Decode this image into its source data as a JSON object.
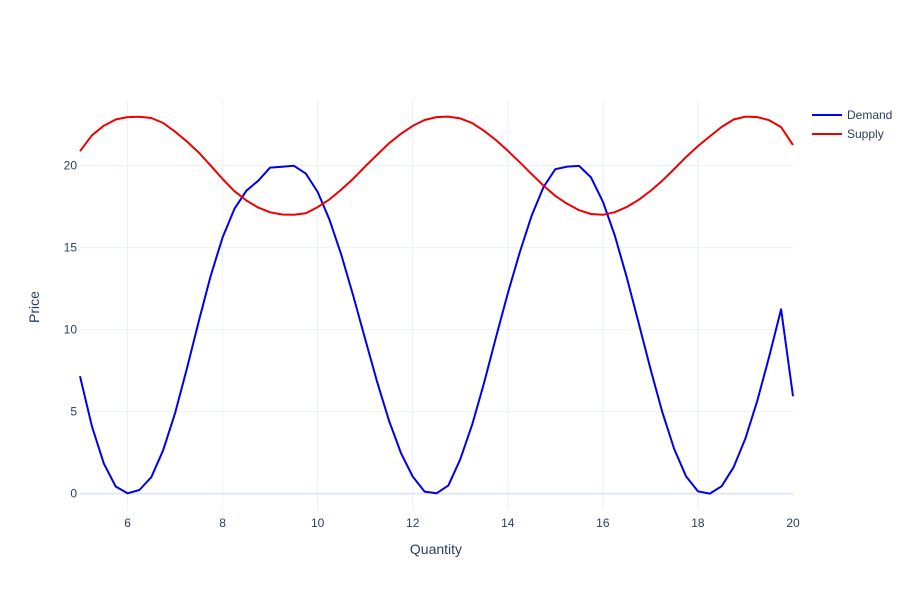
{
  "chart_data": {
    "type": "line",
    "title": "",
    "xlabel": "Quantity",
    "ylabel": "Price",
    "xlim": [
      5,
      20
    ],
    "ylim": [
      -1,
      24
    ],
    "x_ticks": [
      6,
      8,
      10,
      12,
      14,
      16,
      18,
      20
    ],
    "y_ticks": [
      0,
      5,
      10,
      15,
      20
    ],
    "grid": true,
    "legend_position": "top-right",
    "sample_step": 0.25,
    "series": [
      {
        "name": "Demand",
        "color": "#0000ee",
        "x": [
          5,
          5.25,
          5.5,
          5.75,
          6,
          6.25,
          6.5,
          6.75,
          7,
          7.25,
          7.5,
          7.75,
          8,
          8.25,
          8.5,
          8.75,
          9,
          9.25,
          9.5,
          9.75,
          10,
          10.25,
          10.5,
          10.75,
          11,
          11.25,
          11.5,
          11.75,
          12,
          12.25,
          12.5,
          12.75,
          13,
          13.25,
          13.5,
          13.75,
          14,
          14.25,
          14.5,
          14.75,
          15,
          15.25,
          15.5,
          15.75,
          16,
          16.25,
          16.5,
          16.75,
          17,
          17.25,
          17.5,
          17.75,
          18,
          18.25,
          18.5,
          18.75,
          19,
          19.25,
          19.5,
          19.75,
          20
        ],
        "y": [
          7.16,
          4.11,
          1.84,
          0.43,
          0.02,
          0.22,
          1.0,
          2.65,
          4.91,
          7.63,
          10.52,
          13.28,
          15.62,
          17.37,
          18.47,
          19.08,
          19.88,
          19.93,
          19.99,
          19.51,
          18.39,
          16.7,
          14.54,
          12.05,
          9.42,
          6.82,
          4.45,
          2.48,
          1.04,
          0.12,
          0.02,
          0.5,
          2.1,
          4.21,
          6.74,
          9.51,
          12.21,
          14.7,
          16.94,
          18.69,
          19.78,
          19.94,
          19.98,
          19.28,
          17.8,
          15.74,
          13.22,
          10.44,
          7.62,
          4.97,
          2.72,
          1.06,
          0.14,
          0.0,
          0.45,
          1.61,
          3.38,
          5.68,
          8.36,
          11.24,
          5.94
        ]
      },
      {
        "name": "Supply",
        "color": "#ee0000",
        "x": [
          5,
          5.25,
          5.5,
          5.75,
          6,
          6.25,
          6.5,
          6.75,
          7,
          7.25,
          7.5,
          7.75,
          8,
          8.25,
          8.5,
          8.75,
          9,
          9.25,
          9.5,
          9.75,
          10,
          10.25,
          10.5,
          10.75,
          11,
          11.25,
          11.5,
          11.75,
          12,
          12.25,
          12.5,
          12.75,
          13,
          13.25,
          13.5,
          13.75,
          14,
          14.25,
          14.5,
          14.75,
          15,
          15.25,
          15.5,
          15.75,
          16,
          16.25,
          16.5,
          16.75,
          17,
          17.25,
          17.5,
          17.75,
          18,
          18.25,
          18.5,
          18.75,
          19,
          19.25,
          19.5,
          19.75,
          20
        ],
        "y": [
          20.88,
          21.85,
          22.43,
          22.81,
          22.96,
          22.98,
          22.9,
          22.6,
          22.07,
          21.47,
          20.79,
          20.0,
          19.18,
          18.44,
          17.87,
          17.44,
          17.15,
          17.02,
          17.0,
          17.09,
          17.47,
          17.94,
          18.54,
          19.21,
          19.95,
          20.66,
          21.36,
          21.94,
          22.42,
          22.78,
          22.96,
          22.99,
          22.88,
          22.59,
          22.12,
          21.56,
          20.9,
          20.21,
          19.48,
          18.78,
          18.15,
          17.67,
          17.28,
          17.05,
          17.0,
          17.16,
          17.47,
          17.91,
          18.45,
          19.08,
          19.79,
          20.52,
          21.19,
          21.78,
          22.36,
          22.81,
          22.99,
          22.96,
          22.77,
          22.35,
          21.25
        ]
      }
    ]
  }
}
